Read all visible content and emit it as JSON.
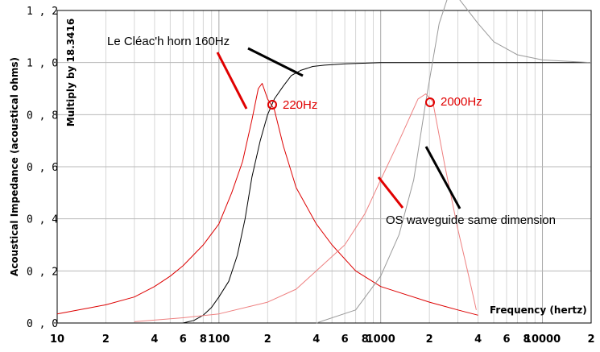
{
  "chart_data": {
    "type": "line",
    "xlabel": "Frequency (hertz)",
    "ylabel": "Acoustical Impedance (acoustical ohms)",
    "ylabel2": "Multiply by 18.3416",
    "xscale": "log",
    "xlim": [
      10,
      20000
    ],
    "ylim": [
      0,
      1.2
    ],
    "grid": true,
    "y_ticks": [
      "0 , 0",
      "0 , 2",
      "0 , 4",
      "0 , 6",
      "0 , 8",
      "1 , 0",
      "1 , 2"
    ],
    "y_tick_values": [
      0,
      0.2,
      0.4,
      0.6,
      0.8,
      1.0,
      1.2
    ],
    "x_ticks": [
      {
        "label": "10",
        "value": 10
      },
      {
        "label": "2",
        "value": 20
      },
      {
        "label": "4",
        "value": 40
      },
      {
        "label": "6",
        "value": 60
      },
      {
        "label": "8",
        "value": 80
      },
      {
        "label": "100",
        "value": 100
      },
      {
        "label": "2",
        "value": 200
      },
      {
        "label": "4",
        "value": 400
      },
      {
        "label": "6",
        "value": 600
      },
      {
        "label": "8",
        "value": 800
      },
      {
        "label": "1000",
        "value": 1000
      },
      {
        "label": "2",
        "value": 2000
      },
      {
        "label": "4",
        "value": 4000
      },
      {
        "label": "6",
        "value": 6000
      },
      {
        "label": "8",
        "value": 8000
      },
      {
        "label": "10000",
        "value": 10000
      },
      {
        "label": "2",
        "value": 20000
      }
    ],
    "series": [
      {
        "color": "#000000",
        "points": [
          [
            60,
            0
          ],
          [
            70,
            0.01
          ],
          [
            80,
            0.03
          ],
          [
            90,
            0.06
          ],
          [
            100,
            0.1
          ],
          [
            115,
            0.16
          ],
          [
            130,
            0.26
          ],
          [
            145,
            0.4
          ],
          [
            160,
            0.56
          ],
          [
            180,
            0.7
          ],
          [
            200,
            0.8
          ],
          [
            220,
            0.86
          ],
          [
            250,
            0.91
          ],
          [
            280,
            0.95
          ],
          [
            320,
            0.97
          ],
          [
            380,
            0.985
          ],
          [
            450,
            0.99
          ],
          [
            600,
            0.995
          ],
          [
            1000,
            1.0
          ],
          [
            20000,
            1.0
          ]
        ]
      },
      {
        "color": "#dd0000",
        "points": [
          [
            10,
            0.035
          ],
          [
            20,
            0.07
          ],
          [
            30,
            0.1
          ],
          [
            40,
            0.14
          ],
          [
            50,
            0.18
          ],
          [
            60,
            0.22
          ],
          [
            80,
            0.3
          ],
          [
            100,
            0.38
          ],
          [
            120,
            0.5
          ],
          [
            140,
            0.62
          ],
          [
            160,
            0.78
          ],
          [
            175,
            0.9
          ],
          [
            185,
            0.92
          ],
          [
            200,
            0.86
          ],
          [
            220,
            0.82
          ],
          [
            250,
            0.68
          ],
          [
            300,
            0.52
          ],
          [
            400,
            0.38
          ],
          [
            500,
            0.3
          ],
          [
            700,
            0.2
          ],
          [
            1000,
            0.14
          ],
          [
            2000,
            0.08
          ],
          [
            3000,
            0.05
          ],
          [
            4000,
            0.03
          ]
        ]
      },
      {
        "color": "#ee8080",
        "points": [
          [
            30,
            0.005
          ],
          [
            60,
            0.02
          ],
          [
            100,
            0.035
          ],
          [
            200,
            0.08
          ],
          [
            300,
            0.13
          ],
          [
            400,
            0.2
          ],
          [
            600,
            0.3
          ],
          [
            800,
            0.42
          ],
          [
            1000,
            0.55
          ],
          [
            1300,
            0.7
          ],
          [
            1700,
            0.86
          ],
          [
            1900,
            0.88
          ],
          [
            2100,
            0.85
          ],
          [
            2500,
            0.6
          ],
          [
            3000,
            0.36
          ],
          [
            3500,
            0.18
          ],
          [
            3900,
            0.05
          ]
        ]
      },
      {
        "color": "#999999",
        "points": [
          [
            400,
            0.0
          ],
          [
            700,
            0.05
          ],
          [
            1000,
            0.18
          ],
          [
            1300,
            0.34
          ],
          [
            1600,
            0.55
          ],
          [
            1900,
            0.85
          ],
          [
            2300,
            1.15
          ],
          [
            2600,
            1.25
          ],
          [
            3000,
            1.25
          ],
          [
            4000,
            1.15
          ],
          [
            5000,
            1.08
          ],
          [
            7000,
            1.03
          ],
          [
            10000,
            1.01
          ],
          [
            20000,
            1.0
          ]
        ]
      }
    ],
    "annotations": [
      {
        "text": "Le Cléac'h horn 160Hz",
        "color": "#000000"
      },
      {
        "text": "220Hz",
        "color": "#e00000",
        "marker_x": 220,
        "marker_y": 0.84
      },
      {
        "text": "2000Hz",
        "color": "#e00000",
        "marker_x": 2000,
        "marker_y": 0.85
      },
      {
        "text": "OS waveguide same dimension",
        "color": "#000000"
      }
    ]
  }
}
